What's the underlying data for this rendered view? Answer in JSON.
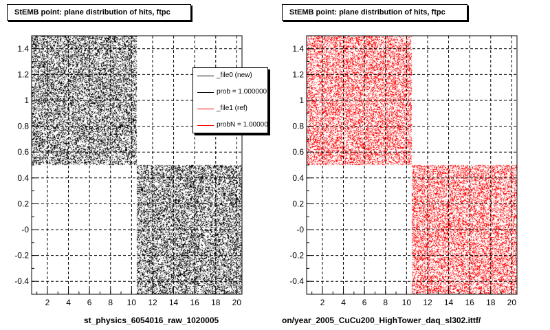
{
  "panels": [
    {
      "title": "StEMB point: plane distribution of hits, ftpc",
      "footer": "st_physics_6054016_raw_1020005"
    },
    {
      "title": "StEMB point: plane distribution of hits, ftpc",
      "footer": "on/year_2005_CuCu200_HighTower_daq_sl302.ittf/"
    }
  ],
  "legend": {
    "entries": [
      {
        "label": "_file0 (new)",
        "color": "#000000"
      },
      {
        "label": "prob = 1.000000",
        "color": "#000000"
      },
      {
        "label": "_file1 (ref)",
        "color": "#ff0000"
      },
      {
        "label": "probN = 1.000000",
        "color": "#ff0000"
      }
    ]
  },
  "chart_data": [
    {
      "type": "scatter",
      "title": "StEMB point: plane distribution of hits, ftpc",
      "xlim": [
        0.5,
        20.5
      ],
      "ylim": [
        -0.5,
        1.5
      ],
      "xticks": [
        "2",
        "4",
        "6",
        "8",
        "10",
        "12",
        "14",
        "16",
        "18",
        "20"
      ],
      "yticks": [
        "-0.4",
        "-0.2",
        "-0",
        "0.2",
        "0.4",
        "0.6",
        "0.8",
        "1",
        "1.2",
        "1.4"
      ],
      "grid": true,
      "color": "#000000",
      "regions": [
        {
          "x": [
            0.5,
            10.5
          ],
          "y": [
            0.5,
            1.5
          ]
        },
        {
          "x": [
            10.5,
            20.5
          ],
          "y": [
            -0.5,
            0.5
          ]
        }
      ]
    },
    {
      "type": "scatter",
      "title": "StEMB point: plane distribution of hits, ftpc",
      "xlim": [
        0.5,
        20.5
      ],
      "ylim": [
        -0.5,
        1.5
      ],
      "xticks": [
        "2",
        "4",
        "6",
        "8",
        "10",
        "12",
        "14",
        "16",
        "18",
        "20"
      ],
      "yticks": [
        "-0.4",
        "-0.2",
        "-0",
        "0.2",
        "0.4",
        "0.6",
        "0.8",
        "1",
        "1.2",
        "1.4"
      ],
      "grid": true,
      "color": "#ff0000",
      "regions": [
        {
          "x": [
            0.5,
            10.5
          ],
          "y": [
            0.5,
            1.5
          ]
        },
        {
          "x": [
            10.5,
            20.5
          ],
          "y": [
            -0.5,
            0.5
          ]
        }
      ]
    }
  ]
}
